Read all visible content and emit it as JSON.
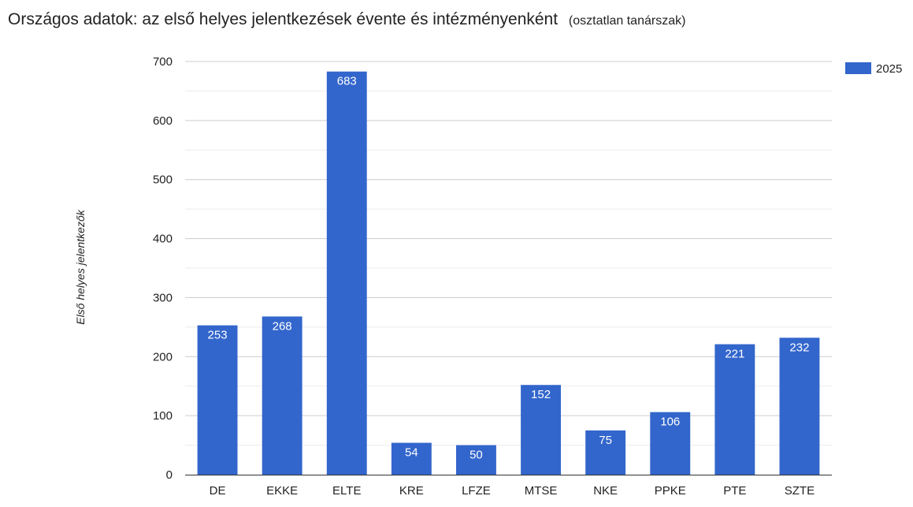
{
  "chart_data": {
    "type": "bar",
    "title": "Országos adatok: az első helyes jelentkezések évente és intézményenként",
    "subtitle": "(osztatlan tanárszak)",
    "ylabel": "Első helyes jelentkezők",
    "xlabel": "",
    "ylim": [
      0,
      700
    ],
    "yticks": [
      0,
      100,
      200,
      300,
      400,
      500,
      600,
      700
    ],
    "grid": true,
    "legend_position": "right",
    "categories": [
      "DE",
      "EKKE",
      "ELTE",
      "KRE",
      "LFZE",
      "MTSE",
      "NKE",
      "PPKE",
      "PTE",
      "SZTE"
    ],
    "series": [
      {
        "name": "2025",
        "color": "#3366cc",
        "values": [
          253,
          268,
          683,
          54,
          50,
          152,
          75,
          106,
          221,
          232
        ]
      }
    ]
  }
}
